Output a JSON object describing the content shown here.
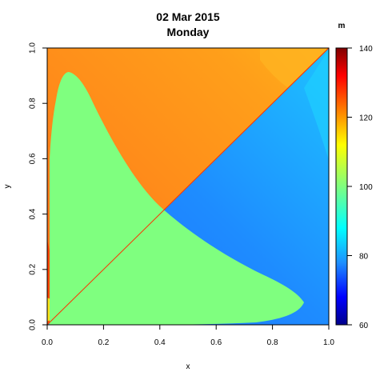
{
  "chart_data": {
    "type": "heatmap",
    "title": "02 Mar 2015",
    "subtitle": "Monday",
    "xlabel": "x",
    "ylabel": "y",
    "xlim": [
      0,
      1
    ],
    "ylim": [
      0,
      1
    ],
    "x_ticks": [
      "0.0",
      "0.2",
      "0.4",
      "0.6",
      "0.8",
      "1.0"
    ],
    "y_ticks": [
      "0.0",
      "0.2",
      "0.4",
      "0.6",
      "0.8",
      "1.0"
    ],
    "colorbar": {
      "unit": "m",
      "range": [
        60,
        140
      ],
      "ticks": [
        "60",
        "80",
        "100",
        "120",
        "140"
      ],
      "stops": [
        {
          "value": 60,
          "color": "#00008b"
        },
        {
          "value": 68,
          "color": "#0000ff"
        },
        {
          "value": 78,
          "color": "#1e90ff"
        },
        {
          "value": 88,
          "color": "#00ffff"
        },
        {
          "value": 100,
          "color": "#7fff7f"
        },
        {
          "value": 112,
          "color": "#ffff00"
        },
        {
          "value": 122,
          "color": "#ff7f00"
        },
        {
          "value": 132,
          "color": "#ff0000"
        },
        {
          "value": 140,
          "color": "#7f0000"
        }
      ]
    },
    "regions": [
      {
        "color": "#ff8c1a"
      },
      {
        "color": "#1e9bff"
      },
      {
        "color": "#7fff7f"
      },
      {
        "color": "#ff4500"
      }
    ]
  }
}
